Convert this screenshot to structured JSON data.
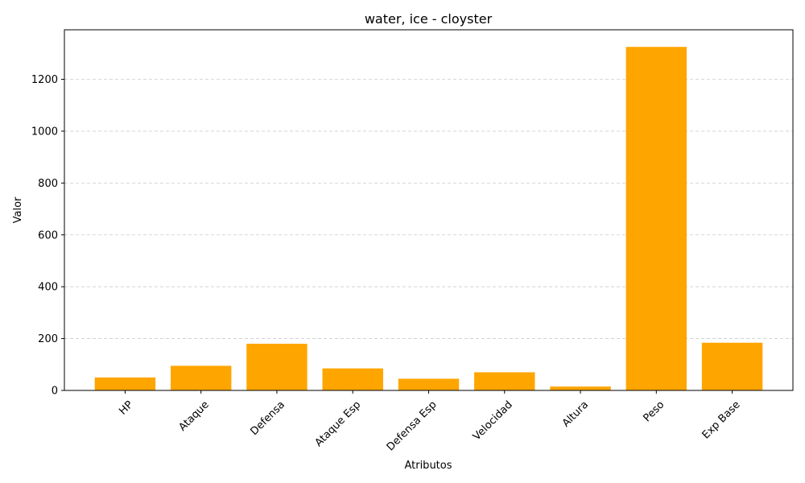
{
  "chart_data": {
    "type": "bar",
    "title": "water, ice - cloyster",
    "xlabel": "Atributos",
    "ylabel": "Valor",
    "categories": [
      "HP",
      "Ataque",
      "Defensa",
      "Ataque Esp",
      "Defensa Esp",
      "Velocidad",
      "Altura",
      "Peso",
      "Exp Base"
    ],
    "values": [
      50,
      95,
      180,
      85,
      45,
      70,
      15,
      1325,
      184
    ],
    "ylim": [
      0,
      1391
    ],
    "yticks": [
      0,
      200,
      400,
      600,
      800,
      1000,
      1200
    ],
    "ytick_labels": [
      "0",
      "200",
      "400",
      "600",
      "800",
      "1000",
      "1200"
    ],
    "grid": "y-dashed",
    "bar_color": "#ffa500",
    "grid_color": "#cccccc"
  }
}
